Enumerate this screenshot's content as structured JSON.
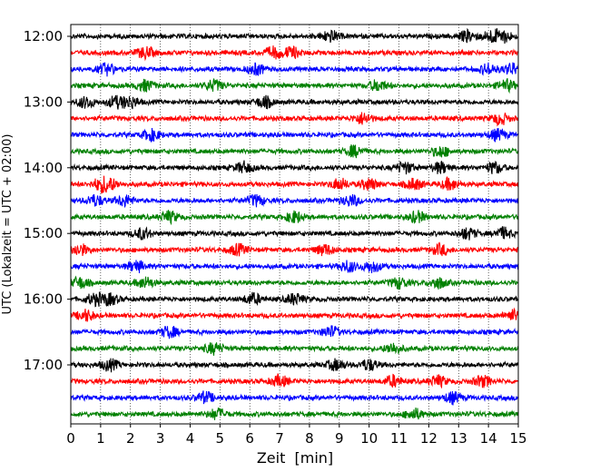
{
  "chart_data": {
    "type": "line",
    "title": "",
    "xlabel": "Zeit  [min]",
    "ylabel": "UTC (Lokalzeit = UTC + 02:00)",
    "xlim": [
      0,
      15
    ],
    "x_ticks": [
      "0",
      "1",
      "2",
      "3",
      "4",
      "5",
      "6",
      "7",
      "8",
      "9",
      "10",
      "11",
      "12",
      "13",
      "14",
      "15"
    ],
    "y_ticks": [
      "12:00",
      "13:00",
      "14:00",
      "15:00",
      "16:00",
      "17:00"
    ],
    "grid": "vertical dotted lines at each minute",
    "line_interval_minutes": 15,
    "trace_color_cycle": [
      "#000000",
      "#ff0000",
      "#0000ff",
      "#008000"
    ],
    "traces": [
      {
        "start": "12:00",
        "color": "#000000",
        "burst_minutes": [
          8.7,
          13.3,
          14.1,
          14.5
        ]
      },
      {
        "start": "12:15",
        "color": "#ff0000",
        "burst_minutes": [
          2.5,
          6.8,
          7.4
        ]
      },
      {
        "start": "12:30",
        "color": "#0000ff",
        "burst_minutes": [
          1.2,
          6.2,
          14.0,
          14.8
        ]
      },
      {
        "start": "12:45",
        "color": "#008000",
        "burst_minutes": [
          2.5,
          4.8,
          10.3,
          14.6
        ]
      },
      {
        "start": "13:00",
        "color": "#000000",
        "burst_minutes": [
          0.5,
          1.5,
          2.0,
          6.5
        ]
      },
      {
        "start": "13:15",
        "color": "#ff0000",
        "burst_minutes": [
          9.8,
          14.4
        ]
      },
      {
        "start": "13:30",
        "color": "#0000ff",
        "burst_minutes": [
          2.7,
          14.3
        ]
      },
      {
        "start": "13:45",
        "color": "#008000",
        "burst_minutes": [
          9.5,
          12.4
        ]
      },
      {
        "start": "14:00",
        "color": "#000000",
        "burst_minutes": [
          5.8,
          11.2,
          12.4,
          14.2
        ]
      },
      {
        "start": "14:15",
        "color": "#ff0000",
        "burst_minutes": [
          1.0,
          1.3,
          9.0,
          10.0,
          11.5,
          12.7
        ]
      },
      {
        "start": "14:30",
        "color": "#0000ff",
        "burst_minutes": [
          0.8,
          1.8,
          6.2,
          9.4
        ]
      },
      {
        "start": "14:45",
        "color": "#008000",
        "burst_minutes": [
          3.3,
          7.5,
          11.6
        ]
      },
      {
        "start": "15:00",
        "color": "#000000",
        "burst_minutes": [
          2.4,
          13.3,
          14.5
        ]
      },
      {
        "start": "15:15",
        "color": "#ff0000",
        "burst_minutes": [
          0.3,
          5.6,
          8.5,
          12.4
        ]
      },
      {
        "start": "15:30",
        "color": "#0000ff",
        "burst_minutes": [
          2.2,
          9.3,
          10.1
        ]
      },
      {
        "start": "15:45",
        "color": "#008000",
        "burst_minutes": [
          0.3,
          2.5,
          11.0,
          12.3
        ]
      },
      {
        "start": "16:00",
        "color": "#000000",
        "burst_minutes": [
          0.8,
          1.3,
          6.1,
          7.5
        ]
      },
      {
        "start": "16:15",
        "color": "#ff0000",
        "burst_minutes": [
          0.5,
          14.8
        ]
      },
      {
        "start": "16:30",
        "color": "#0000ff",
        "burst_minutes": [
          3.3,
          8.7
        ]
      },
      {
        "start": "16:45",
        "color": "#008000",
        "burst_minutes": [
          4.8,
          10.8
        ]
      },
      {
        "start": "17:00",
        "color": "#000000",
        "burst_minutes": [
          1.3,
          8.9,
          10.0
        ]
      },
      {
        "start": "17:15",
        "color": "#ff0000",
        "burst_minutes": [
          7.0,
          10.8,
          12.3,
          13.8
        ]
      },
      {
        "start": "17:30",
        "color": "#0000ff",
        "burst_minutes": [
          4.5,
          12.8
        ]
      },
      {
        "start": "17:45",
        "color": "#008000",
        "burst_minutes": [
          4.9,
          11.5
        ]
      }
    ]
  }
}
